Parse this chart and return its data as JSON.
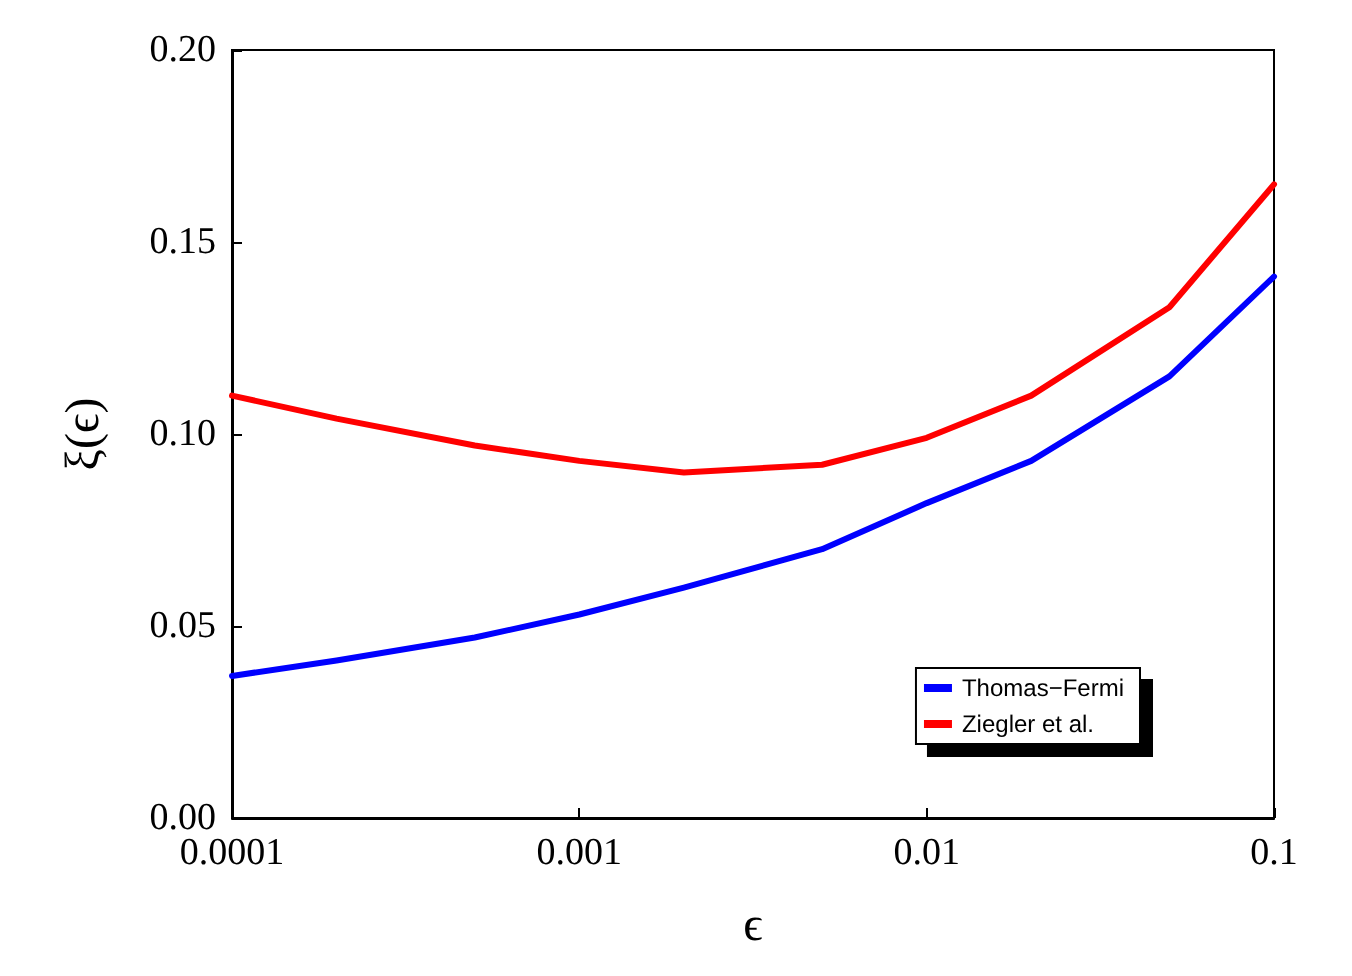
{
  "chart_data": {
    "type": "line",
    "xlabel": "ϵ",
    "ylabel": "ξ(ϵ)",
    "log": "x",
    "xlim": [
      0.0001,
      0.1
    ],
    "xticks": [
      0.0001,
      0.001,
      0.01,
      0.1
    ],
    "ylim": [
      0,
      0.2
    ],
    "yticks": [
      {
        "value": 0,
        "label": "0.00"
      },
      {
        "value": 0.05,
        "label": "0.05"
      },
      {
        "value": 0.1,
        "label": "0.10"
      },
      {
        "value": 0.15,
        "label": "0.15"
      },
      {
        "value": 0.2,
        "label": "0.20"
      }
    ],
    "x": [
      0.0001,
      0.0002,
      0.0005,
      0.001,
      0.002,
      0.005,
      0.01,
      0.02,
      0.05,
      0.1
    ],
    "series": [
      {
        "name": "Thomas−Fermi",
        "color": "#0000ff",
        "values": [
          0.037,
          0.041,
          0.047,
          0.053,
          0.06,
          0.07,
          0.082,
          0.093,
          0.115,
          0.141
        ]
      },
      {
        "name": "Ziegler et al.",
        "color": "#ff0000",
        "values": [
          0.11,
          0.104,
          0.097,
          0.093,
          0.09,
          0.092,
          0.099,
          0.11,
          0.133,
          0.165
        ]
      }
    ],
    "legend": "bottom right",
    "grid": false,
    "marker": "none",
    "line_style": "solid"
  }
}
